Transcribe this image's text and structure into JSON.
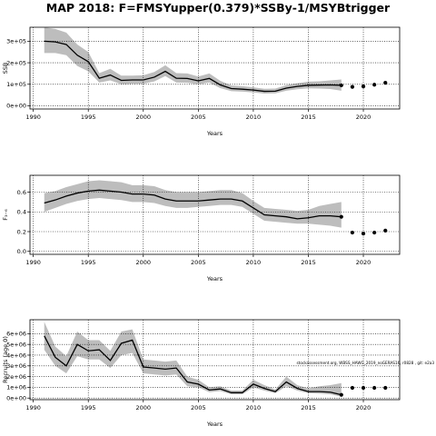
{
  "title": "MAP 2018: F=FMSYupper(0.379)*SSBy-1/MSYBtrigger",
  "annotation": "stockassessment.org, WBSS_HAWG_2019_noGERAS16, r0828 , git: e2a3",
  "chart_data": [
    {
      "type": "line",
      "xlabel": "Years",
      "ylabel": "SSB",
      "xlim": [
        1989.7,
        2023.3
      ],
      "ylim": [
        -15000,
        365000
      ],
      "xticks": [
        "1990",
        "1995",
        "2000",
        "2005",
        "2010",
        "2015",
        "2020"
      ],
      "yticks": [
        "0e+00",
        "1e+05",
        "2e+05",
        "3e+05"
      ],
      "grid": "dotted",
      "series": [
        {
          "x": [
            1991,
            1992,
            1993,
            1994,
            1995,
            1996,
            1997,
            1998,
            1999,
            2000,
            2001,
            2002,
            2003,
            2004,
            2005,
            2006,
            2007,
            2008,
            2009,
            2010,
            2011,
            2012,
            2013,
            2014,
            2015,
            2016,
            2017,
            2018
          ],
          "values": [
            300000,
            297000,
            285000,
            235000,
            205000,
            128000,
            143000,
            118000,
            120000,
            120000,
            133000,
            160000,
            128000,
            127000,
            116000,
            127000,
            97000,
            80000,
            77000,
            73000,
            67000,
            68000,
            82000,
            90000,
            95000,
            96000,
            97000,
            95000
          ],
          "lower": [
            245000,
            245000,
            235000,
            185000,
            160000,
            108000,
            118000,
            100000,
            102000,
            102000,
            113000,
            138000,
            108000,
            107000,
            100000,
            108000,
            82000,
            68000,
            66000,
            62000,
            57000,
            58000,
            70000,
            77000,
            81000,
            80000,
            78000,
            70000
          ],
          "upper": [
            365000,
            357000,
            340000,
            285000,
            250000,
            152000,
            172000,
            140000,
            140000,
            142000,
            157000,
            188000,
            152000,
            150000,
            136000,
            150000,
            116000,
            94000,
            91000,
            86000,
            79000,
            80000,
            96000,
            105000,
            112000,
            114000,
            118000,
            122000
          ]
        },
        {
          "x": [
            2019,
            2020,
            2021,
            2022
          ],
          "values": [
            88000,
            90000,
            98000,
            107000
          ],
          "style": "points"
        }
      ]
    },
    {
      "type": "line",
      "xlabel": "Years",
      "ylabel": "F₃₋₆",
      "xlim": [
        1989.7,
        2023.3
      ],
      "ylim": [
        -0.03,
        0.77
      ],
      "xticks": [
        "1990",
        "1995",
        "2000",
        "2005",
        "2010",
        "2015",
        "2020"
      ],
      "yticks": [
        "0.0",
        "0.2",
        "0.4",
        "0.6"
      ],
      "grid": "dotted",
      "series": [
        {
          "x": [
            1991,
            1992,
            1993,
            1994,
            1995,
            1996,
            1997,
            1998,
            1999,
            2000,
            2001,
            2002,
            2003,
            2004,
            2005,
            2006,
            2007,
            2008,
            2009,
            2010,
            2011,
            2012,
            2013,
            2014,
            2015,
            2016,
            2017,
            2018
          ],
          "values": [
            0.49,
            0.52,
            0.56,
            0.59,
            0.61,
            0.62,
            0.61,
            0.6,
            0.58,
            0.58,
            0.57,
            0.53,
            0.51,
            0.51,
            0.51,
            0.52,
            0.53,
            0.53,
            0.51,
            0.44,
            0.37,
            0.36,
            0.35,
            0.33,
            0.34,
            0.36,
            0.36,
            0.35
          ],
          "lower": [
            0.4,
            0.44,
            0.48,
            0.51,
            0.53,
            0.54,
            0.53,
            0.52,
            0.5,
            0.5,
            0.49,
            0.46,
            0.44,
            0.44,
            0.45,
            0.46,
            0.47,
            0.47,
            0.45,
            0.38,
            0.31,
            0.3,
            0.29,
            0.28,
            0.28,
            0.27,
            0.26,
            0.24
          ],
          "upper": [
            0.59,
            0.61,
            0.65,
            0.68,
            0.71,
            0.72,
            0.71,
            0.7,
            0.67,
            0.67,
            0.66,
            0.62,
            0.6,
            0.6,
            0.6,
            0.61,
            0.62,
            0.62,
            0.59,
            0.51,
            0.44,
            0.43,
            0.42,
            0.41,
            0.42,
            0.46,
            0.48,
            0.5
          ]
        },
        {
          "x": [
            2019,
            2020,
            2021,
            2022
          ],
          "values": [
            0.19,
            0.18,
            0.19,
            0.21
          ],
          "style": "points"
        }
      ]
    },
    {
      "type": "line",
      "xlabel": "Years",
      "ylabel": "Recruits (age 0)",
      "xlim": [
        1989.7,
        2023.3
      ],
      "ylim": [
        -150000,
        7300000
      ],
      "xticks": [
        "1990",
        "1995",
        "2000",
        "2005",
        "2010",
        "2015",
        "2020"
      ],
      "yticks": [
        "0e+00",
        "1e+06",
        "2e+06",
        "3e+06",
        "4e+06",
        "5e+06",
        "6e+06"
      ],
      "grid": "dotted",
      "series": [
        {
          "x": [
            1991,
            1992,
            1993,
            1994,
            1995,
            1996,
            1997,
            1998,
            1999,
            2000,
            2001,
            2002,
            2003,
            2004,
            2005,
            2006,
            2007,
            2008,
            2009,
            2010,
            2011,
            2012,
            2013,
            2014,
            2015,
            2016,
            2017,
            2018
          ],
          "values": [
            5800000,
            3800000,
            3000000,
            5000000,
            4400000,
            4500000,
            3500000,
            5100000,
            5400000,
            2900000,
            2800000,
            2700000,
            2800000,
            1500000,
            1300000,
            750000,
            850000,
            500000,
            500000,
            1300000,
            900000,
            600000,
            1500000,
            900000,
            600000,
            600000,
            550000,
            300000
          ],
          "lower": [
            4500000,
            3000000,
            2300000,
            3900000,
            3600000,
            3600000,
            2800000,
            4000000,
            4200000,
            2300000,
            2200000,
            2100000,
            2200000,
            1100000,
            1000000,
            550000,
            650000,
            350000,
            350000,
            1000000,
            700000,
            450000,
            1100000,
            700000,
            450000,
            420000,
            350000,
            120000
          ],
          "upper": [
            7100000,
            4800000,
            3900000,
            6200000,
            5400000,
            5400000,
            4400000,
            6200000,
            6400000,
            3600000,
            3500000,
            3400000,
            3500000,
            2000000,
            1700000,
            1000000,
            1100000,
            700000,
            700000,
            1700000,
            1200000,
            800000,
            2000000,
            1200000,
            900000,
            1100000,
            1200000,
            1400000
          ]
        },
        {
          "x": [
            2019,
            2020,
            2021,
            2022
          ],
          "values": [
            950000,
            950000,
            950000,
            950000
          ],
          "style": "points"
        }
      ]
    }
  ]
}
